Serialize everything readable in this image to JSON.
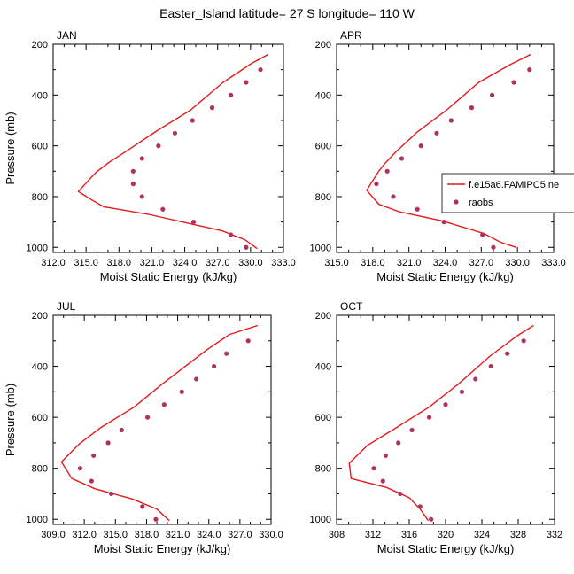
{
  "figure_title": "Easter_Island  latitude= 27 S longitude= 110 W",
  "legend": {
    "placement": "right-of-apr-panel",
    "model_label": "f.e15a6.FAMIPC5.ne",
    "obs_label": "raobs"
  },
  "colors": {
    "model": "#e31a1c",
    "obs": "#b03060",
    "axis": "#000000"
  },
  "chart_data": [
    {
      "type": "line",
      "panel": "JAN",
      "xlabel": "Moist Static Energy (kJ/kg)",
      "ylabel": "Pressure (mb)",
      "xlim": [
        312,
        333
      ],
      "ylim": [
        1020,
        200
      ],
      "y_reversed": true,
      "xticks": [
        312,
        315,
        318,
        321,
        324,
        327,
        330,
        333
      ],
      "xtick_labels": [
        "312.0",
        "315.0",
        "318.0",
        "321.0",
        "324.0",
        "327.0",
        "330.0",
        "333.0"
      ],
      "yticks": [
        200,
        400,
        600,
        800,
        1000
      ],
      "ytick_labels": [
        "200",
        "400",
        "600",
        "800",
        "1000"
      ],
      "series": [
        {
          "name": "f.e15a6.FAMIPC5.ne",
          "style": "line",
          "points": [
            [
              331.6,
              240
            ],
            [
              330.1,
              275
            ],
            [
              327.5,
              350
            ],
            [
              324.5,
              460
            ],
            [
              321.5,
              540
            ],
            [
              318.7,
              620
            ],
            [
              317.1,
              665
            ],
            [
              315.9,
              705
            ],
            [
              314.3,
              780
            ],
            [
              315.4,
              810
            ],
            [
              316.6,
              840
            ],
            [
              320.7,
              870
            ],
            [
              327.4,
              935
            ],
            [
              329.5,
              970
            ],
            [
              330.6,
              1005
            ]
          ]
        },
        {
          "name": "raobs",
          "style": "scatter",
          "points": [
            [
              330.9,
              300
            ],
            [
              329.6,
              350
            ],
            [
              328.2,
              400
            ],
            [
              326.5,
              450
            ],
            [
              324.7,
              500
            ],
            [
              323.1,
              550
            ],
            [
              321.6,
              600
            ],
            [
              320.1,
              650
            ],
            [
              319.3,
              700
            ],
            [
              319.3,
              750
            ],
            [
              320.1,
              800
            ],
            [
              322.0,
              850
            ],
            [
              324.8,
              900
            ],
            [
              328.2,
              950
            ],
            [
              329.6,
              1000
            ]
          ]
        }
      ]
    },
    {
      "type": "line",
      "panel": "APR",
      "xlabel": "Moist Static Energy (kJ/kg)",
      "ylabel": "",
      "xlim": [
        315,
        333
      ],
      "ylim": [
        1020,
        200
      ],
      "y_reversed": true,
      "xticks": [
        315,
        318,
        321,
        324,
        327,
        330,
        333
      ],
      "xtick_labels": [
        "315.0",
        "318.0",
        "321.0",
        "324.0",
        "327.0",
        "330.0",
        "333.0"
      ],
      "yticks": [
        200,
        400,
        600,
        800,
        1000
      ],
      "ytick_labels": [
        "200",
        "400",
        "600",
        "800",
        "1000"
      ],
      "series": [
        {
          "name": "f.e15a6.FAMIPC5.ne",
          "style": "line",
          "points": [
            [
              331.1,
              240
            ],
            [
              329.4,
              280
            ],
            [
              326.8,
              350
            ],
            [
              324.1,
              460
            ],
            [
              321.7,
              545
            ],
            [
              319.9,
              625
            ],
            [
              319.0,
              670
            ],
            [
              318.5,
              700
            ],
            [
              317.5,
              775
            ],
            [
              318.5,
              830
            ],
            [
              320.2,
              860
            ],
            [
              323.7,
              895
            ],
            [
              327.2,
              945
            ],
            [
              328.6,
              980
            ],
            [
              329.9,
              1000
            ]
          ]
        },
        {
          "name": "raobs",
          "style": "scatter",
          "points": [
            [
              331.0,
              300
            ],
            [
              329.7,
              350
            ],
            [
              327.9,
              400
            ],
            [
              326.2,
              450
            ],
            [
              324.5,
              500
            ],
            [
              323.3,
              550
            ],
            [
              322.0,
              600
            ],
            [
              320.4,
              650
            ],
            [
              319.2,
              700
            ],
            [
              318.3,
              750
            ],
            [
              319.7,
              800
            ],
            [
              321.7,
              850
            ],
            [
              323.9,
              900
            ],
            [
              327.1,
              950
            ],
            [
              328.0,
              1000
            ]
          ]
        }
      ]
    },
    {
      "type": "line",
      "panel": "JUL",
      "xlabel": "Moist Static Energy (kJ/kg)",
      "ylabel": "Pressure (mb)",
      "xlim": [
        309,
        330
      ],
      "ylim": [
        1020,
        200
      ],
      "y_reversed": true,
      "xticks": [
        309,
        312,
        315,
        318,
        321,
        324,
        327,
        330
      ],
      "xtick_labels": [
        "309.0",
        "312.0",
        "315.0",
        "318.0",
        "321.0",
        "324.0",
        "327.0",
        "330.0"
      ],
      "yticks": [
        200,
        400,
        600,
        800,
        1000
      ],
      "ytick_labels": [
        "200",
        "400",
        "600",
        "800",
        "1000"
      ],
      "series": [
        {
          "name": "f.e15a6.FAMIPC5.ne",
          "style": "line",
          "points": [
            [
              328.7,
              240
            ],
            [
              326.0,
              275
            ],
            [
              323.8,
              335
            ],
            [
              319.5,
              470
            ],
            [
              316.8,
              560
            ],
            [
              313.6,
              640
            ],
            [
              311.5,
              705
            ],
            [
              309.8,
              775
            ],
            [
              310.8,
              840
            ],
            [
              313.0,
              880
            ],
            [
              316.6,
              920
            ],
            [
              319.0,
              960
            ],
            [
              320.2,
              1005
            ]
          ]
        },
        {
          "name": "raobs",
          "style": "scatter",
          "points": [
            [
              327.8,
              300
            ],
            [
              325.7,
              350
            ],
            [
              324.5,
              400
            ],
            [
              322.8,
              450
            ],
            [
              321.4,
              500
            ],
            [
              319.7,
              550
            ],
            [
              318.1,
              600
            ],
            [
              315.6,
              650
            ],
            [
              314.3,
              700
            ],
            [
              312.9,
              750
            ],
            [
              311.6,
              800
            ],
            [
              312.7,
              850
            ],
            [
              314.6,
              900
            ],
            [
              317.6,
              950
            ],
            [
              318.9,
              1000
            ]
          ]
        }
      ]
    },
    {
      "type": "line",
      "panel": "OCT",
      "xlabel": "Moist Static Energy (kJ/kg)",
      "ylabel": "",
      "xlim": [
        308,
        332
      ],
      "ylim": [
        1020,
        200
      ],
      "y_reversed": true,
      "xticks": [
        308,
        312,
        316,
        320,
        324,
        328,
        332
      ],
      "xtick_labels": [
        "308",
        "312",
        "316",
        "320",
        "324",
        "328",
        "332"
      ],
      "yticks": [
        200,
        400,
        600,
        800,
        1000
      ],
      "ytick_labels": [
        "200",
        "400",
        "600",
        "800",
        "1000"
      ],
      "series": [
        {
          "name": "f.e15a6.FAMIPC5.ne",
          "style": "line",
          "points": [
            [
              329.7,
              240
            ],
            [
              327.9,
              280
            ],
            [
              324.9,
              360
            ],
            [
              321.4,
              470
            ],
            [
              318.2,
              560
            ],
            [
              314.6,
              640
            ],
            [
              311.4,
              710
            ],
            [
              309.4,
              780
            ],
            [
              309.6,
              840
            ],
            [
              313.5,
              875
            ],
            [
              316.0,
              915
            ],
            [
              317.2,
              960
            ],
            [
              318.1,
              1005
            ]
          ]
        },
        {
          "name": "raobs",
          "style": "scatter",
          "points": [
            [
              328.6,
              300
            ],
            [
              326.8,
              350
            ],
            [
              325.0,
              400
            ],
            [
              323.3,
              450
            ],
            [
              321.8,
              500
            ],
            [
              320.0,
              550
            ],
            [
              318.2,
              600
            ],
            [
              316.3,
              650
            ],
            [
              314.8,
              700
            ],
            [
              313.4,
              750
            ],
            [
              312.1,
              800
            ],
            [
              313.1,
              850
            ],
            [
              315.0,
              900
            ],
            [
              317.2,
              950
            ],
            [
              318.4,
              1000
            ]
          ]
        }
      ]
    }
  ]
}
